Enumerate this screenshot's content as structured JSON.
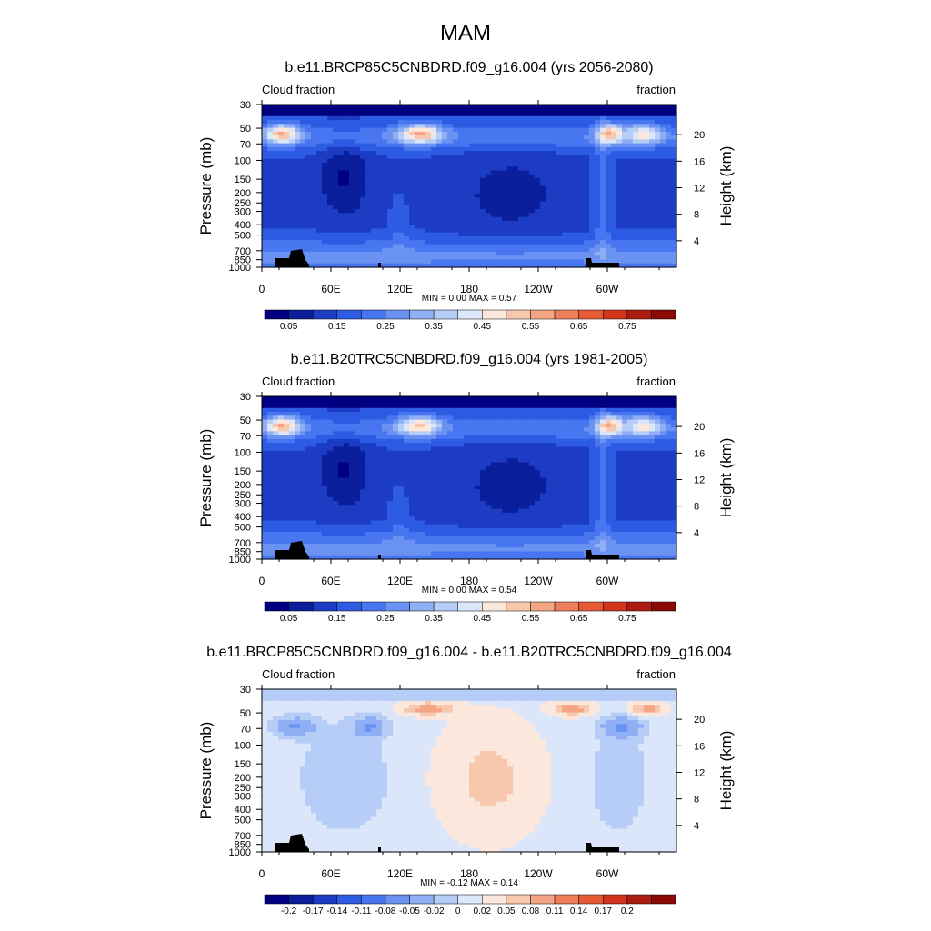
{
  "figure": {
    "title": "MAM",
    "colors": {
      "absolute": [
        "#000080",
        "#0a1f9c",
        "#1c3cc4",
        "#2d5be3",
        "#4876f0",
        "#6a92f2",
        "#8faef4",
        "#b6cdf7",
        "#dbe6fb",
        "#fbe7dc",
        "#f7c7ae",
        "#f3a584",
        "#ee7f5a",
        "#e65a36",
        "#d1361d",
        "#ad1c10",
        "#8a0b05"
      ],
      "difference": [
        "#000080",
        "#0a1f9c",
        "#1c3cc4",
        "#2d5be3",
        "#4876f0",
        "#6a92f2",
        "#8faef4",
        "#b6cdf7",
        "#dbe6fb",
        "#fbe7dc",
        "#f7c7ae",
        "#f3a584",
        "#ee7f5a",
        "#e65a36",
        "#d1361d",
        "#ad1c10",
        "#8a0b05"
      ]
    }
  },
  "chart_data": [
    {
      "type": "heatmap",
      "title": "b.e11.BRCP85C5CNBDRD.f09_g16.004 (yrs 2056-2080)",
      "left_label": "Cloud fraction",
      "right_label": "fraction",
      "ylabel": "Pressure (mb)",
      "ylabel_right": "Height (km)",
      "x_ticks": [
        "0",
        "60E",
        "120E",
        "180",
        "120W",
        "60W"
      ],
      "y_ticks": [
        "30",
        "50",
        "70",
        "100",
        "150",
        "200",
        "250",
        "300",
        "400",
        "500",
        "700",
        "850",
        "1000"
      ],
      "height_ticks": [
        "20",
        "16",
        "12",
        "8",
        "4"
      ],
      "stats": "MIN =   0.00  MAX =   0.57",
      "colorbar_labels": [
        "0.05",
        "0.15",
        "0.25",
        "0.35",
        "0.45",
        "0.55",
        "0.65",
        "0.75"
      ],
      "field": "absolute",
      "min": 0.0,
      "max": 0.57
    },
    {
      "type": "heatmap",
      "title": "b.e11.B20TRC5CNBDRD.f09_g16.004 (yrs 1981-2005)",
      "left_label": "Cloud fraction",
      "right_label": "fraction",
      "ylabel": "Pressure (mb)",
      "ylabel_right": "Height (km)",
      "x_ticks": [
        "0",
        "60E",
        "120E",
        "180",
        "120W",
        "60W"
      ],
      "y_ticks": [
        "30",
        "50",
        "70",
        "100",
        "150",
        "200",
        "250",
        "300",
        "400",
        "500",
        "700",
        "850",
        "1000"
      ],
      "height_ticks": [
        "20",
        "16",
        "12",
        "8",
        "4"
      ],
      "stats": "MIN =   0.00  MAX =   0.54",
      "colorbar_labels": [
        "0.05",
        "0.15",
        "0.25",
        "0.35",
        "0.45",
        "0.55",
        "0.65",
        "0.75"
      ],
      "field": "absolute",
      "min": 0.0,
      "max": 0.54
    },
    {
      "type": "heatmap",
      "title": "b.e11.BRCP85C5CNBDRD.f09_g16.004 - b.e11.B20TRC5CNBDRD.f09_g16.004",
      "left_label": "Cloud fraction",
      "right_label": "fraction",
      "ylabel": "Pressure (mb)",
      "ylabel_right": "Height (km)",
      "x_ticks": [
        "0",
        "60E",
        "120E",
        "180",
        "120W",
        "60W"
      ],
      "y_ticks": [
        "30",
        "50",
        "70",
        "100",
        "150",
        "200",
        "250",
        "300",
        "400",
        "500",
        "700",
        "850",
        "1000"
      ],
      "height_ticks": [
        "20",
        "16",
        "12",
        "8",
        "4"
      ],
      "stats": "MIN =  -0.12  MAX =   0.14",
      "colorbar_labels": [
        "-0.2",
        "-0.17",
        "-0.14",
        "-0.11",
        "-0.08",
        "-0.05",
        "-0.02",
        "0",
        "0.02",
        "0.05",
        "0.08",
        "0.11",
        "0.14",
        "0.17",
        "0.2"
      ],
      "field": "difference",
      "min": -0.12,
      "max": 0.14
    }
  ]
}
